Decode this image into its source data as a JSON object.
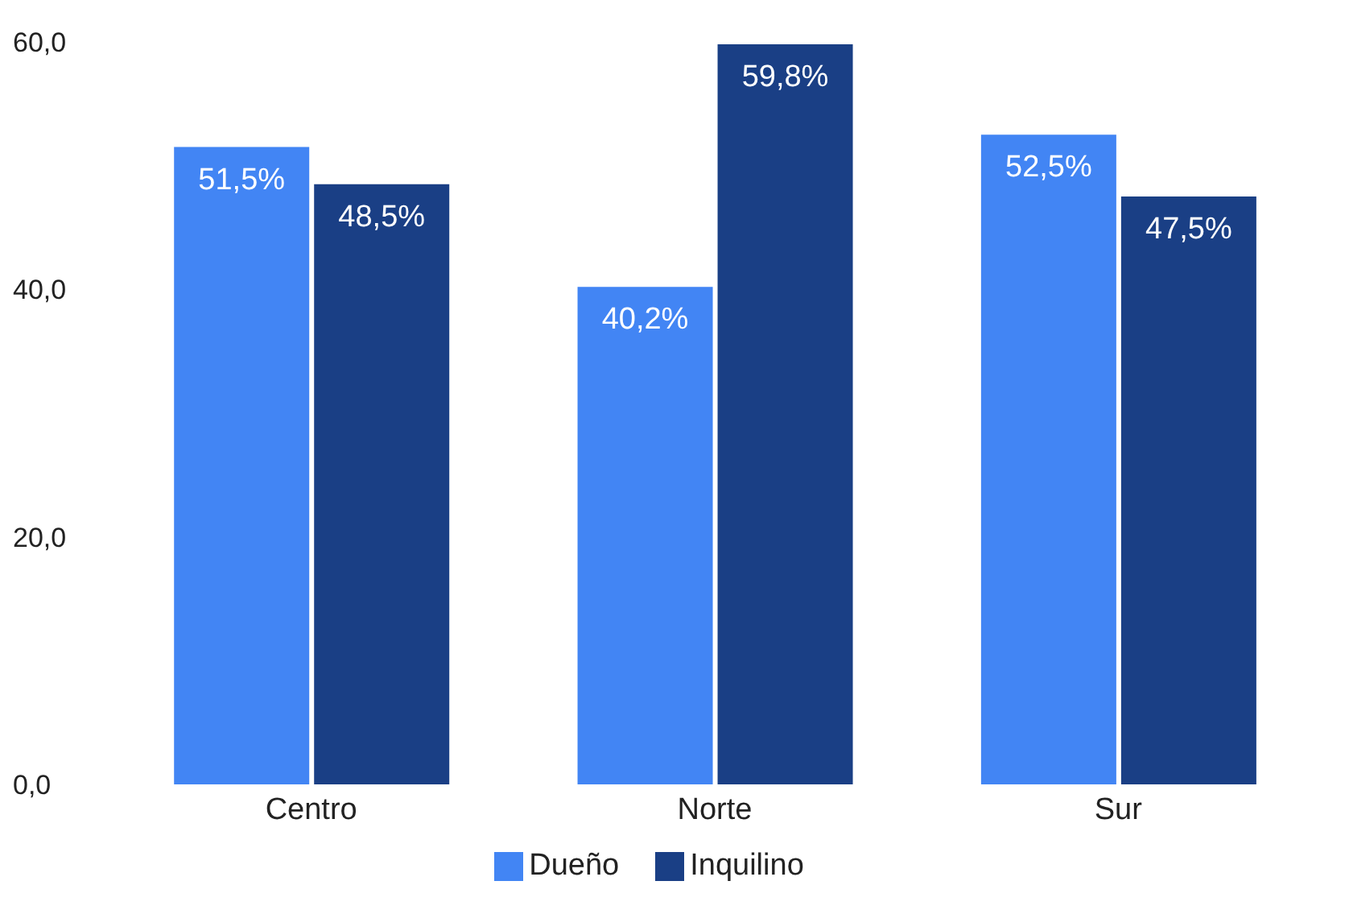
{
  "chart_data": {
    "type": "bar",
    "categories": [
      "Centro",
      "Norte",
      "Sur"
    ],
    "series": [
      {
        "name": "Dueño",
        "color": "#4285f4",
        "values": [
          51.5,
          40.2,
          52.5
        ],
        "value_labels": [
          "51,5%",
          "40,2%",
          "52,5%"
        ]
      },
      {
        "name": "Inquilino",
        "color": "#1a3f85",
        "values": [
          48.5,
          59.8,
          47.5
        ],
        "value_labels": [
          "48,5%",
          "59,8%",
          "47,5%"
        ]
      }
    ],
    "ylim": [
      0,
      60
    ],
    "yticks": [
      {
        "value": 0,
        "label": "0,0"
      },
      {
        "value": 20,
        "label": "20,0"
      },
      {
        "value": 40,
        "label": "40,0"
      },
      {
        "value": 60,
        "label": "60,0"
      }
    ],
    "grid": false,
    "legend": "bottom"
  }
}
